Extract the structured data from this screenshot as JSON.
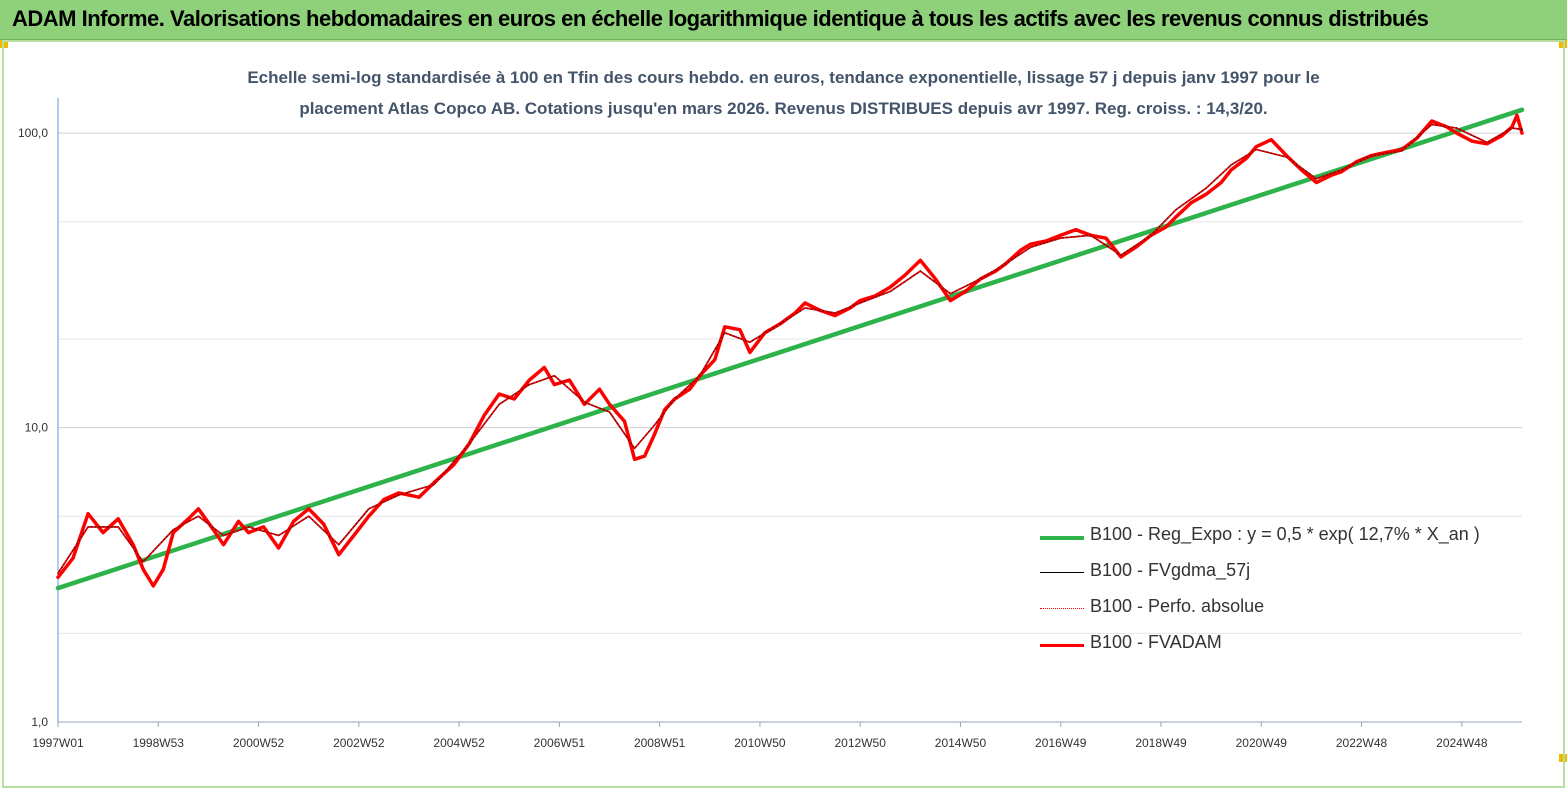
{
  "header": {
    "title": "ADAM Informe. Valorisations hebdomadaires en euros en échelle logarithmique identique à tous les actifs avec les revenus connus distribués"
  },
  "chart_data": {
    "type": "line",
    "title_line1": "Echelle semi-log standardisée à 100 en Tfin des cours hebdo. en euros, tendance exponentielle, lissage 57 j depuis janv 1997 pour le",
    "title_line2": "placement Atlas Copco AB. Cotations jusqu'en mars 2026.  Revenus DISTRIBUES depuis avr 1997. Reg. croiss. : 14,3/20.",
    "yscale": "log",
    "ylim": [
      1,
      180
    ],
    "xlim": [
      1997.0,
      2026.2
    ],
    "y_ticks": [
      {
        "value": 1,
        "label": "1,0"
      },
      {
        "value": 10,
        "label": "10,0"
      },
      {
        "value": 100,
        "label": "100,0"
      }
    ],
    "x_ticks": [
      {
        "value": 1997.0,
        "label": "1997W01"
      },
      {
        "value": 1999.0,
        "label": "1998W53"
      },
      {
        "value": 2001.0,
        "label": "2000W52"
      },
      {
        "value": 2003.0,
        "label": "2002W52"
      },
      {
        "value": 2005.0,
        "label": "2004W52"
      },
      {
        "value": 2007.0,
        "label": "2006W51"
      },
      {
        "value": 2009.0,
        "label": "2008W51"
      },
      {
        "value": 2011.0,
        "label": "2010W50"
      },
      {
        "value": 2013.0,
        "label": "2012W50"
      },
      {
        "value": 2015.0,
        "label": "2014W50"
      },
      {
        "value": 2017.0,
        "label": "2016W49"
      },
      {
        "value": 2019.0,
        "label": "2018W49"
      },
      {
        "value": 2021.0,
        "label": "2020W49"
      },
      {
        "value": 2023.0,
        "label": "2022W48"
      },
      {
        "value": 2025.0,
        "label": "2024W48"
      }
    ],
    "grid": "horizontal",
    "legend_position": "bottom-right",
    "series": [
      {
        "name": "B100 - Reg_Expo : y = 0,5 * exp( 12,7% *  X_an )",
        "color": "#2db34a",
        "style": "thick",
        "x": [
          1997.0,
          2026.2
        ],
        "y": [
          2.85,
          120
        ]
      },
      {
        "name": "B100 - FVgdma_57j",
        "color": "#000000",
        "style": "thin",
        "x": [
          1997.0,
          1997.6,
          1998.2,
          1998.7,
          1999.3,
          1999.8,
          2000.3,
          2000.8,
          2001.4,
          2002.0,
          2002.6,
          2003.2,
          2003.8,
          2004.5,
          2005.2,
          2005.8,
          2006.4,
          2006.9,
          2007.5,
          2008.0,
          2008.5,
          2008.9,
          2009.3,
          2009.8,
          2010.3,
          2010.8,
          2011.4,
          2011.9,
          2012.5,
          2013.0,
          2013.6,
          2014.2,
          2014.8,
          2015.4,
          2015.9,
          2016.4,
          2017.0,
          2017.6,
          2018.2,
          2018.8,
          2019.3,
          2019.9,
          2020.4,
          2020.9,
          2021.5,
          2022.1,
          2022.6,
          2023.2,
          2023.8,
          2024.4,
          2024.9,
          2025.5,
          2026.0,
          2026.2
        ],
        "y": [
          3.2,
          4.6,
          4.6,
          3.5,
          4.5,
          5.0,
          4.3,
          4.6,
          4.3,
          5.0,
          4.0,
          5.3,
          5.9,
          6.4,
          8.8,
          12.0,
          14.0,
          15.0,
          12.2,
          11.3,
          8.5,
          10.2,
          12.5,
          15.0,
          21.0,
          19.5,
          22.5,
          25.5,
          24.5,
          26.5,
          29.0,
          34.0,
          28.5,
          32.0,
          36.0,
          41.0,
          44.0,
          45.0,
          38.5,
          45.0,
          55.0,
          65.0,
          78.0,
          88.0,
          83.0,
          70.0,
          75.0,
          84.0,
          87.0,
          107.0,
          104.0,
          93.0,
          104.0,
          103.0
        ]
      },
      {
        "name": "B100 - Perfo. absolue",
        "color": "#ff0000",
        "style": "dotted",
        "x": [
          1997.0,
          1997.6,
          1998.2,
          1998.7,
          1999.3,
          1999.8,
          2000.3,
          2000.8,
          2001.4,
          2002.0,
          2002.6,
          2003.2,
          2003.8,
          2004.5,
          2005.2,
          2005.8,
          2006.4,
          2006.9,
          2007.5,
          2008.0,
          2008.5,
          2008.9,
          2009.3,
          2009.8,
          2010.3,
          2010.8,
          2011.4,
          2011.9,
          2012.5,
          2013.0,
          2013.6,
          2014.2,
          2014.8,
          2015.4,
          2015.9,
          2016.4,
          2017.0,
          2017.6,
          2018.2,
          2018.8,
          2019.3,
          2019.9,
          2020.4,
          2020.9,
          2021.5,
          2022.1,
          2022.6,
          2023.2,
          2023.8,
          2024.4,
          2024.9,
          2025.5,
          2026.0,
          2026.2
        ],
        "y": [
          3.2,
          4.6,
          4.6,
          3.5,
          4.5,
          5.0,
          4.3,
          4.6,
          4.3,
          5.0,
          4.0,
          5.3,
          5.9,
          6.4,
          8.8,
          12.0,
          14.0,
          15.0,
          12.2,
          11.3,
          8.5,
          10.2,
          12.5,
          15.0,
          21.0,
          19.5,
          22.5,
          25.5,
          24.5,
          26.5,
          29.0,
          34.0,
          28.5,
          32.0,
          36.0,
          41.0,
          44.0,
          45.0,
          38.5,
          45.0,
          55.0,
          65.0,
          78.0,
          88.0,
          83.0,
          70.0,
          75.0,
          84.0,
          87.0,
          107.0,
          104.0,
          93.0,
          104.0,
          103.0
        ]
      },
      {
        "name": "B100 - FVADAM",
        "color": "#ff0000",
        "style": "thick",
        "x": [
          1997.0,
          1997.3,
          1997.6,
          1997.9,
          1998.2,
          1998.5,
          1998.7,
          1998.9,
          1999.1,
          1999.3,
          1999.6,
          1999.8,
          2000.1,
          2000.3,
          2000.6,
          2000.8,
          2001.1,
          2001.4,
          2001.7,
          2002.0,
          2002.3,
          2002.6,
          2002.9,
          2003.2,
          2003.5,
          2003.8,
          2004.2,
          2004.5,
          2004.9,
          2005.2,
          2005.5,
          2005.8,
          2006.1,
          2006.4,
          2006.7,
          2006.9,
          2007.2,
          2007.5,
          2007.8,
          2008.0,
          2008.3,
          2008.5,
          2008.7,
          2008.9,
          2009.1,
          2009.3,
          2009.6,
          2009.8,
          2010.1,
          2010.3,
          2010.6,
          2010.8,
          2011.1,
          2011.4,
          2011.7,
          2011.9,
          2012.2,
          2012.5,
          2012.8,
          2013.0,
          2013.3,
          2013.6,
          2013.9,
          2014.2,
          2014.5,
          2014.8,
          2015.1,
          2015.4,
          2015.7,
          2015.9,
          2016.2,
          2016.4,
          2016.7,
          2017.0,
          2017.3,
          2017.6,
          2017.9,
          2018.2,
          2018.5,
          2018.8,
          2019.1,
          2019.3,
          2019.6,
          2019.9,
          2020.2,
          2020.4,
          2020.7,
          2020.9,
          2021.2,
          2021.5,
          2021.8,
          2022.1,
          2022.4,
          2022.6,
          2022.9,
          2023.2,
          2023.5,
          2023.8,
          2024.1,
          2024.4,
          2024.7,
          2024.9,
          2025.2,
          2025.5,
          2025.8,
          2026.0,
          2026.1,
          2026.2
        ],
        "y": [
          3.1,
          3.6,
          5.1,
          4.4,
          4.9,
          4.0,
          3.3,
          2.9,
          3.3,
          4.4,
          4.9,
          5.3,
          4.5,
          4.0,
          4.8,
          4.4,
          4.6,
          3.9,
          4.8,
          5.3,
          4.7,
          3.7,
          4.3,
          5.0,
          5.7,
          6.0,
          5.8,
          6.5,
          7.5,
          8.8,
          11.0,
          13.0,
          12.5,
          14.5,
          16.0,
          14.0,
          14.5,
          12.0,
          13.5,
          12.0,
          10.5,
          7.8,
          8.0,
          9.5,
          11.5,
          12.5,
          13.5,
          15.0,
          17.0,
          22.0,
          21.5,
          18.0,
          21.0,
          22.5,
          24.5,
          26.5,
          25.0,
          24.0,
          25.5,
          27.0,
          28.0,
          30.0,
          33.0,
          37.0,
          32.0,
          27.0,
          29.0,
          32.0,
          34.0,
          36.0,
          40.0,
          42.0,
          43.0,
          45.0,
          47.0,
          45.0,
          44.0,
          38.0,
          41.0,
          45.0,
          48.0,
          52.0,
          58.0,
          62.0,
          68.0,
          75.0,
          82.0,
          90.0,
          95.0,
          84.0,
          75.0,
          68.0,
          72.0,
          74.0,
          80.0,
          84.0,
          86.0,
          88.0,
          96.0,
          110.0,
          105.0,
          100.0,
          94.0,
          92.0,
          98.0,
          105.0,
          115.0,
          100.0
        ]
      }
    ]
  }
}
